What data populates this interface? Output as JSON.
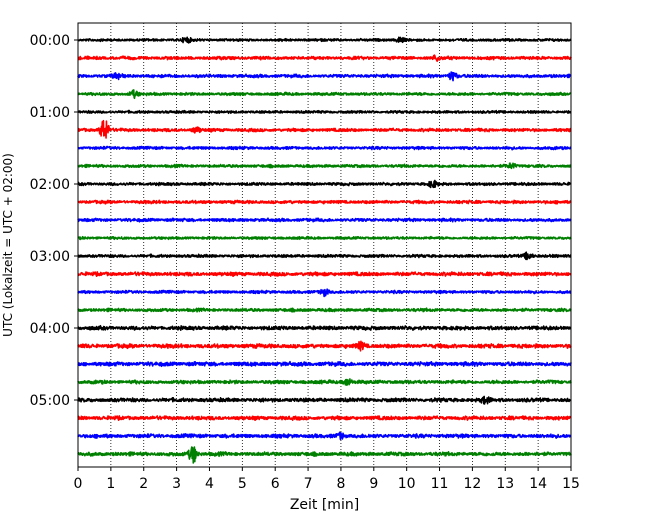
{
  "chart_data": {
    "type": "line",
    "title": "",
    "xlabel": "Zeit  [min]",
    "ylabel": "UTC (Lokalzeit = UTC + 02:00)",
    "xlim": [
      0,
      15
    ],
    "x_ticks": [
      "0",
      "1",
      "2",
      "3",
      "4",
      "5",
      "6",
      "7",
      "8",
      "9",
      "10",
      "11",
      "12",
      "13",
      "14",
      "15"
    ],
    "y_tick_labels": [
      "00:00",
      "01:00",
      "02:00",
      "03:00",
      "04:00",
      "05:00"
    ],
    "rows_per_hour": 4,
    "row_count": 24,
    "row_colors": [
      "#000000",
      "#ff0000",
      "#0000ff",
      "#008000"
    ],
    "grid": "vertical dotted lines at each minute",
    "series": [
      {
        "row": 0,
        "label": "00:00",
        "color": "#000000",
        "noise_amplitude": 0.8,
        "events": [
          {
            "x": 3.3,
            "amp": 1.6
          },
          {
            "x": 9.8,
            "amp": 1.6
          }
        ]
      },
      {
        "row": 1,
        "label": "00:15",
        "color": "#ff0000",
        "noise_amplitude": 1.0,
        "events": [
          {
            "x": 10.9,
            "amp": 1.4
          }
        ]
      },
      {
        "row": 2,
        "label": "00:30",
        "color": "#0000ff",
        "noise_amplitude": 1.0,
        "events": [
          {
            "x": 1.2,
            "amp": 1.8
          },
          {
            "x": 11.4,
            "amp": 2.6
          }
        ]
      },
      {
        "row": 3,
        "label": "00:45",
        "color": "#008000",
        "noise_amplitude": 0.9,
        "events": [
          {
            "x": 1.7,
            "amp": 2.0
          }
        ]
      },
      {
        "row": 4,
        "label": "01:00",
        "color": "#000000",
        "noise_amplitude": 0.8,
        "events": []
      },
      {
        "row": 5,
        "label": "01:15",
        "color": "#ff0000",
        "noise_amplitude": 1.0,
        "events": [
          {
            "x": 0.8,
            "amp": 7.0
          },
          {
            "x": 3.6,
            "amp": 1.6
          }
        ]
      },
      {
        "row": 6,
        "label": "01:30",
        "color": "#0000ff",
        "noise_amplitude": 0.9,
        "events": []
      },
      {
        "row": 7,
        "label": "01:45",
        "color": "#008000",
        "noise_amplitude": 0.9,
        "events": [
          {
            "x": 13.2,
            "amp": 1.6
          }
        ]
      },
      {
        "row": 8,
        "label": "02:00",
        "color": "#000000",
        "noise_amplitude": 0.9,
        "events": [
          {
            "x": 10.8,
            "amp": 2.0
          }
        ]
      },
      {
        "row": 9,
        "label": "02:15",
        "color": "#ff0000",
        "noise_amplitude": 1.0,
        "events": []
      },
      {
        "row": 10,
        "label": "02:30",
        "color": "#0000ff",
        "noise_amplitude": 1.0,
        "events": []
      },
      {
        "row": 11,
        "label": "02:45",
        "color": "#008000",
        "noise_amplitude": 0.8,
        "events": []
      },
      {
        "row": 12,
        "label": "03:00",
        "color": "#000000",
        "noise_amplitude": 0.9,
        "events": [
          {
            "x": 13.7,
            "amp": 2.2
          }
        ]
      },
      {
        "row": 13,
        "label": "03:15",
        "color": "#ff0000",
        "noise_amplitude": 1.2,
        "events": []
      },
      {
        "row": 14,
        "label": "03:30",
        "color": "#0000ff",
        "noise_amplitude": 0.9,
        "events": [
          {
            "x": 7.5,
            "amp": 2.2
          }
        ]
      },
      {
        "row": 15,
        "label": "03:45",
        "color": "#008000",
        "noise_amplitude": 1.0,
        "events": []
      },
      {
        "row": 16,
        "label": "04:00",
        "color": "#000000",
        "noise_amplitude": 1.2,
        "events": []
      },
      {
        "row": 17,
        "label": "04:15",
        "color": "#ff0000",
        "noise_amplitude": 1.3,
        "events": [
          {
            "x": 8.6,
            "amp": 2.0
          }
        ]
      },
      {
        "row": 18,
        "label": "04:30",
        "color": "#0000ff",
        "noise_amplitude": 1.3,
        "events": []
      },
      {
        "row": 19,
        "label": "04:45",
        "color": "#008000",
        "noise_amplitude": 1.1,
        "events": [
          {
            "x": 8.2,
            "amp": 2.0
          }
        ]
      },
      {
        "row": 20,
        "label": "05:00",
        "color": "#000000",
        "noise_amplitude": 1.2,
        "events": [
          {
            "x": 12.4,
            "amp": 2.0
          }
        ]
      },
      {
        "row": 21,
        "label": "05:15",
        "color": "#ff0000",
        "noise_amplitude": 1.2,
        "events": []
      },
      {
        "row": 22,
        "label": "05:30",
        "color": "#0000ff",
        "noise_amplitude": 1.2,
        "events": [
          {
            "x": 8.0,
            "amp": 1.6
          }
        ]
      },
      {
        "row": 23,
        "label": "05:45",
        "color": "#008000",
        "noise_amplitude": 1.2,
        "events": [
          {
            "x": 3.5,
            "amp": 5.0
          }
        ]
      }
    ]
  }
}
